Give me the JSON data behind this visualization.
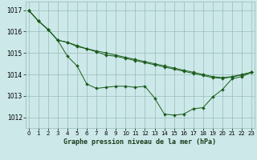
{
  "bg_color": "#cce8e8",
  "grid_color": "#99bbbb",
  "line_color": "#1a5c1a",
  "title": "Graphe pression niveau de la mer (hPa)",
  "ylim": [
    1011.5,
    1017.4
  ],
  "xlim": [
    -0.3,
    23.3
  ],
  "yticks": [
    1012,
    1013,
    1014,
    1015,
    1016,
    1017
  ],
  "xticks": [
    0,
    1,
    2,
    3,
    4,
    5,
    6,
    7,
    8,
    9,
    10,
    11,
    12,
    13,
    14,
    15,
    16,
    17,
    18,
    19,
    20,
    21,
    22,
    23
  ],
  "series": [
    [
      1017.0,
      1016.5,
      1016.1,
      1015.6,
      1015.5,
      1015.3,
      1015.2,
      1015.05,
      1014.9,
      1014.85,
      1014.75,
      1014.65,
      1014.55,
      1014.45,
      1014.35,
      1014.25,
      1014.15,
      1014.05,
      1013.95,
      1013.85,
      1013.82,
      1013.88,
      1013.98,
      1014.1
    ],
    [
      1017.0,
      1016.5,
      1016.1,
      1015.6,
      1015.5,
      1015.35,
      1015.2,
      1015.1,
      1015.0,
      1014.9,
      1014.8,
      1014.7,
      1014.6,
      1014.5,
      1014.4,
      1014.3,
      1014.2,
      1014.1,
      1014.0,
      1013.9,
      1013.85,
      1013.9,
      1014.0,
      1014.1
    ],
    [
      1017.0,
      1016.5,
      1016.1,
      1015.6,
      1014.85,
      1014.4,
      1013.55,
      1013.35,
      1013.4,
      1013.45,
      1013.45,
      1013.4,
      1013.45,
      1012.9,
      1012.15,
      1012.1,
      1012.15,
      1012.4,
      1012.45,
      1012.95,
      1013.3,
      1013.8,
      1013.9,
      1014.1
    ]
  ]
}
